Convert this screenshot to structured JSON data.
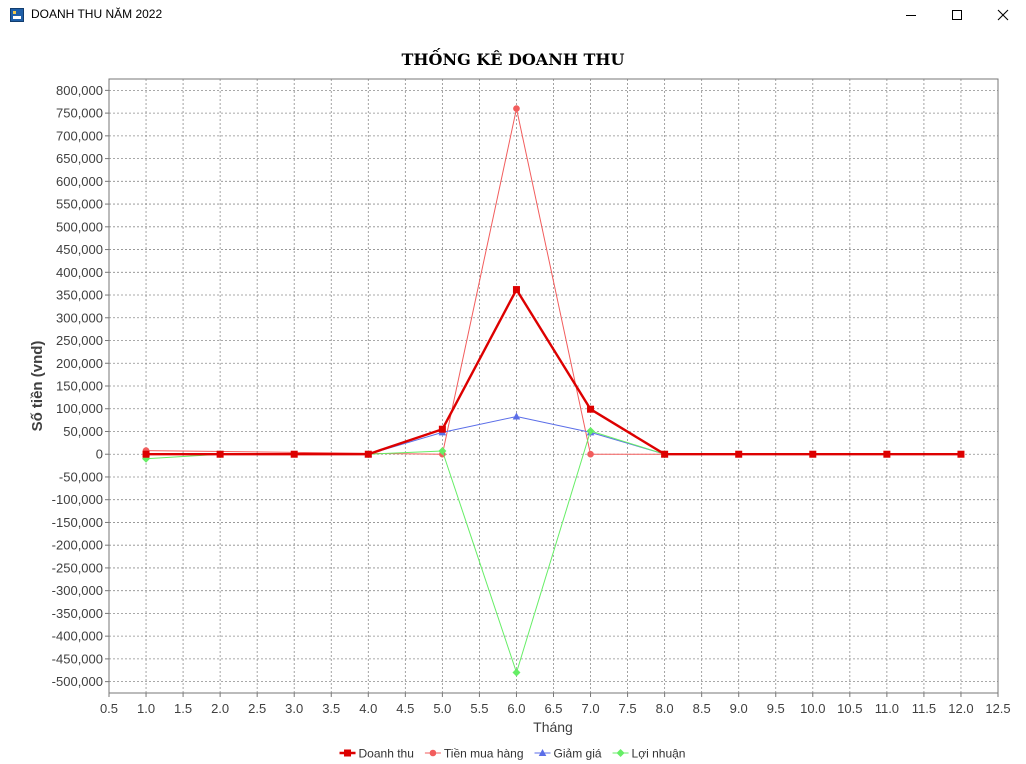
{
  "window": {
    "title": "DOANH THU NĂM 2022",
    "app_icon": "chart-app-icon",
    "controls": [
      {
        "name": "minimize-button",
        "icon": "minimize-icon"
      },
      {
        "name": "maximize-button",
        "icon": "maximize-icon"
      },
      {
        "name": "close-button",
        "icon": "close-icon"
      }
    ]
  },
  "chart_data": {
    "type": "line",
    "title": "THỐNG KÊ DOANH THU",
    "xlabel": "Tháng",
    "ylabel": "Số tiền (vnd)",
    "xlim": [
      0.5,
      12.5
    ],
    "ylim": [
      -525000,
      825000
    ],
    "x_ticks": [
      "0.5",
      "1.0",
      "1.5",
      "2.0",
      "2.5",
      "3.0",
      "3.5",
      "4.0",
      "4.5",
      "5.0",
      "5.5",
      "6.0",
      "6.5",
      "7.0",
      "7.5",
      "8.0",
      "8.5",
      "9.0",
      "9.5",
      "10.0",
      "10.5",
      "11.0",
      "11.5",
      "12.0",
      "12.5"
    ],
    "y_ticks": [
      "800,000",
      "750,000",
      "700,000",
      "650,000",
      "600,000",
      "550,000",
      "500,000",
      "450,000",
      "400,000",
      "350,000",
      "300,000",
      "250,000",
      "200,000",
      "150,000",
      "100,000",
      "50,000",
      "0",
      "-50,000",
      "-100,000",
      "-150,000",
      "-200,000",
      "-250,000",
      "-300,000",
      "-350,000",
      "-400,000",
      "-450,000",
      "-500,000"
    ],
    "grid": true,
    "legend_position": "bottom",
    "series": [
      {
        "name": "Doanh thu",
        "color": "#dd0000",
        "marker": "square",
        "emphasis": "thick",
        "points": [
          [
            1,
            0
          ],
          [
            2,
            0
          ],
          [
            3,
            0
          ],
          [
            4,
            0
          ],
          [
            5,
            55000
          ],
          [
            6,
            362000
          ],
          [
            7,
            99000
          ],
          [
            8,
            0
          ],
          [
            9,
            0
          ],
          [
            10,
            0
          ],
          [
            11,
            0
          ],
          [
            12,
            0
          ]
        ]
      },
      {
        "name": "Tiền mua hàng",
        "color": "#f25d5d",
        "marker": "circle",
        "emphasis": "thin",
        "points": [
          [
            1,
            8000
          ],
          [
            5,
            0
          ],
          [
            6,
            760000
          ],
          [
            7,
            0
          ],
          [
            8,
            0
          ]
        ]
      },
      {
        "name": "Giảm giá",
        "color": "#5b6ee8",
        "marker": "triangle",
        "emphasis": "thin",
        "points": [
          [
            4,
            0
          ],
          [
            5,
            48000
          ],
          [
            6,
            83000
          ],
          [
            7,
            48000
          ],
          [
            8,
            0
          ]
        ]
      },
      {
        "name": "Lợi nhuận",
        "color": "#66ee66",
        "marker": "diamond",
        "emphasis": "thin",
        "points": [
          [
            1,
            -10000
          ],
          [
            2,
            0
          ],
          [
            4,
            0
          ],
          [
            5,
            7000
          ],
          [
            6,
            -480000
          ],
          [
            7,
            51000
          ],
          [
            8,
            0
          ]
        ]
      }
    ]
  }
}
